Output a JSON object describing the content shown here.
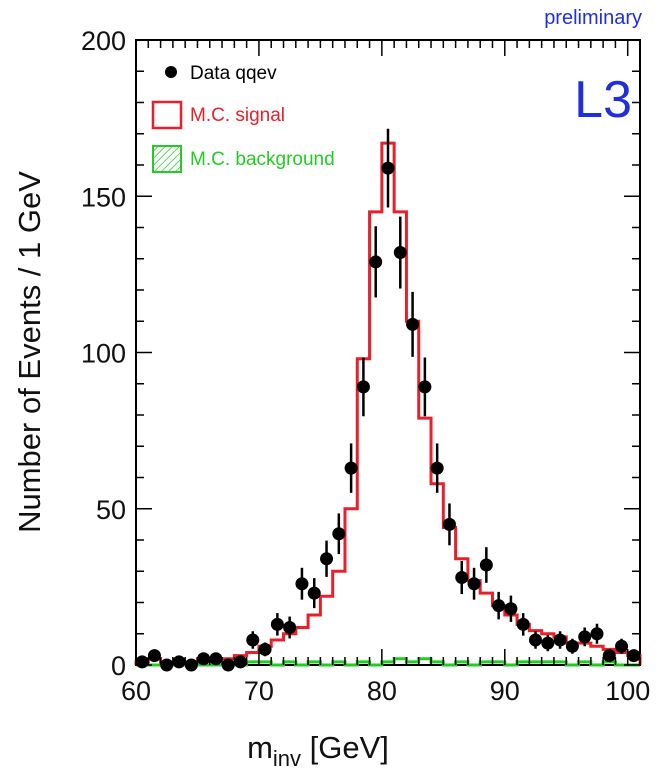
{
  "chart_data": {
    "type": "histogram",
    "title": "",
    "experiment_label": "L3",
    "status_label": "preliminary",
    "xlabel_main": "m",
    "xlabel_sub": "inv",
    "xlabel_unit": "[GeV]",
    "ylabel": "Number of Events / 1 GeV",
    "xlim": [
      60,
      101
    ],
    "ylim": [
      0,
      200
    ],
    "x_ticks": [
      60,
      70,
      80,
      90,
      100
    ],
    "y_ticks": [
      0,
      50,
      100,
      150,
      200
    ],
    "legend": {
      "placement": "top-left",
      "entries": [
        {
          "label": "Data qqev",
          "kind": "marker"
        },
        {
          "label": "M.C. signal",
          "kind": "box",
          "color": "#e8202a"
        },
        {
          "label": "M.C. background",
          "kind": "hatched-box",
          "color": "#22cc22"
        }
      ]
    },
    "colors": {
      "data": "#000000",
      "signal": "#e8202a",
      "background": "#22cc22",
      "label": "#1f2fdc"
    },
    "data_series": {
      "name": "Data qqev",
      "x": [
        60.5,
        61.5,
        62.5,
        63.5,
        64.5,
        65.5,
        66.5,
        67.5,
        68.5,
        69.5,
        70.5,
        71.5,
        72.5,
        73.5,
        74.5,
        75.5,
        76.5,
        77.5,
        78.5,
        79.5,
        80.5,
        81.5,
        82.5,
        83.5,
        84.5,
        85.5,
        86.5,
        87.5,
        88.5,
        89.5,
        90.5,
        91.5,
        92.5,
        93.5,
        94.5,
        95.5,
        96.5,
        97.5,
        98.5,
        99.5,
        100.5
      ],
      "y": [
        1,
        3,
        0,
        1,
        0,
        2,
        2,
        0,
        1,
        8,
        5,
        13,
        12,
        26,
        23,
        34,
        42,
        63,
        89,
        129,
        159,
        132,
        109,
        89,
        63,
        45,
        28,
        26,
        32,
        19,
        18,
        13,
        8,
        7,
        8,
        6,
        9,
        10,
        3,
        6,
        3
      ],
      "err": [
        1,
        1.7,
        0,
        1,
        0,
        1.4,
        1.4,
        0,
        1,
        2.8,
        2.2,
        3.6,
        3.5,
        5.1,
        4.8,
        5.8,
        6.5,
        7.9,
        9.4,
        11.4,
        12.6,
        11.5,
        10.4,
        9.4,
        7.9,
        6.7,
        5.3,
        5.1,
        5.7,
        4.4,
        4.2,
        3.6,
        2.8,
        2.6,
        2.8,
        2.4,
        3,
        3.2,
        1.7,
        2.4,
        1.7
      ]
    },
    "signal_series": {
      "name": "M.C. signal",
      "bin_edges": [
        60,
        61,
        62,
        63,
        64,
        65,
        66,
        67,
        68,
        69,
        70,
        71,
        72,
        73,
        74,
        75,
        76,
        77,
        78,
        79,
        80,
        81,
        82,
        83,
        84,
        85,
        86,
        87,
        88,
        89,
        90,
        91,
        92,
        93,
        94,
        95,
        96,
        97,
        98,
        99,
        100,
        101
      ],
      "values": [
        1,
        2,
        1,
        1,
        1,
        2,
        2,
        2,
        3,
        4,
        6,
        8,
        10,
        12,
        16,
        22,
        30,
        50,
        98,
        145,
        167,
        145,
        110,
        79,
        58,
        44,
        34,
        27,
        23,
        19,
        16,
        13,
        11,
        10,
        9,
        7,
        7,
        6,
        5,
        4,
        3
      ]
    },
    "background_series": {
      "name": "M.C. background",
      "bin_edges": [
        60,
        61,
        62,
        63,
        64,
        65,
        66,
        67,
        68,
        69,
        70,
        71,
        72,
        73,
        74,
        75,
        76,
        77,
        78,
        79,
        80,
        81,
        82,
        83,
        84,
        85,
        86,
        87,
        88,
        89,
        90,
        91,
        92,
        93,
        94,
        95,
        96,
        97,
        98,
        99,
        100,
        101
      ],
      "values": [
        0,
        0,
        0,
        0,
        0,
        0,
        0,
        0,
        0,
        1,
        1,
        0,
        1,
        0,
        1,
        0,
        1,
        0,
        1,
        0,
        1,
        2,
        1,
        2,
        1,
        0,
        1,
        0,
        1,
        1,
        0,
        1,
        1,
        1,
        1,
        0,
        1,
        0,
        1,
        0,
        0
      ]
    }
  }
}
